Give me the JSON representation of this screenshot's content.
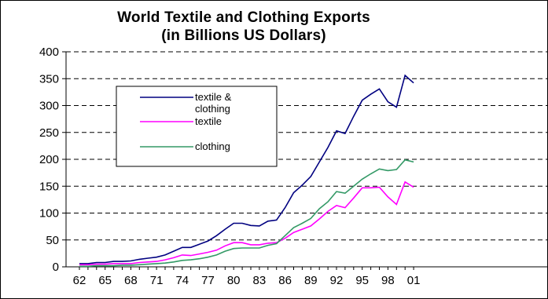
{
  "chart_data": {
    "type": "line",
    "title": "World Textile and Clothing Exports",
    "subtitle": "(in Billions US Dollars)",
    "xlabel": "",
    "ylabel": "",
    "ylim": [
      0,
      400
    ],
    "y_ticks": [
      0,
      50,
      100,
      150,
      200,
      250,
      300,
      350,
      400
    ],
    "x_tick_labels": [
      "62",
      "65",
      "68",
      "71",
      "74",
      "77",
      "80",
      "83",
      "86",
      "89",
      "92",
      "95",
      "98",
      "01"
    ],
    "grid": "horizontal dashed",
    "legend_position": "upper-left inside plot",
    "x": [
      1962,
      1963,
      1964,
      1965,
      1966,
      1967,
      1968,
      1969,
      1970,
      1971,
      1972,
      1973,
      1974,
      1975,
      1976,
      1977,
      1978,
      1979,
      1980,
      1981,
      1982,
      1983,
      1984,
      1985,
      1986,
      1987,
      1988,
      1989,
      1990,
      1991,
      1992,
      1993,
      1994,
      1995,
      1996,
      1997,
      1998,
      1999,
      2000,
      2001
    ],
    "series": [
      {
        "name": "textile & clothing",
        "color": "#000080",
        "values": [
          6,
          6,
          8,
          8,
          10,
          10,
          11,
          14,
          16,
          18,
          22,
          29,
          36,
          36,
          42,
          48,
          58,
          70,
          81,
          81,
          77,
          76,
          85,
          87,
          110,
          138,
          152,
          168,
          195,
          222,
          253,
          248,
          280,
          310,
          321,
          331,
          307,
          297,
          356,
          342
        ]
      },
      {
        "name": "textile",
        "color": "#ff00ff",
        "values": [
          4,
          4,
          5,
          5,
          6,
          6,
          6,
          8,
          9,
          10,
          13,
          17,
          22,
          21,
          24,
          27,
          31,
          39,
          45,
          45,
          41,
          41,
          44,
          45,
          53,
          64,
          70,
          76,
          89,
          103,
          114,
          110,
          128,
          147,
          147,
          148,
          130,
          116,
          158,
          148
        ]
      },
      {
        "name": "clothing",
        "color": "#339966",
        "values": [
          1,
          1,
          2,
          2,
          2,
          3,
          3,
          4,
          5,
          6,
          7,
          9,
          12,
          13,
          15,
          18,
          22,
          29,
          34,
          35,
          35,
          35,
          40,
          43,
          58,
          73,
          81,
          90,
          108,
          121,
          140,
          137,
          150,
          163,
          173,
          182,
          179,
          181,
          199,
          195
        ]
      }
    ]
  }
}
